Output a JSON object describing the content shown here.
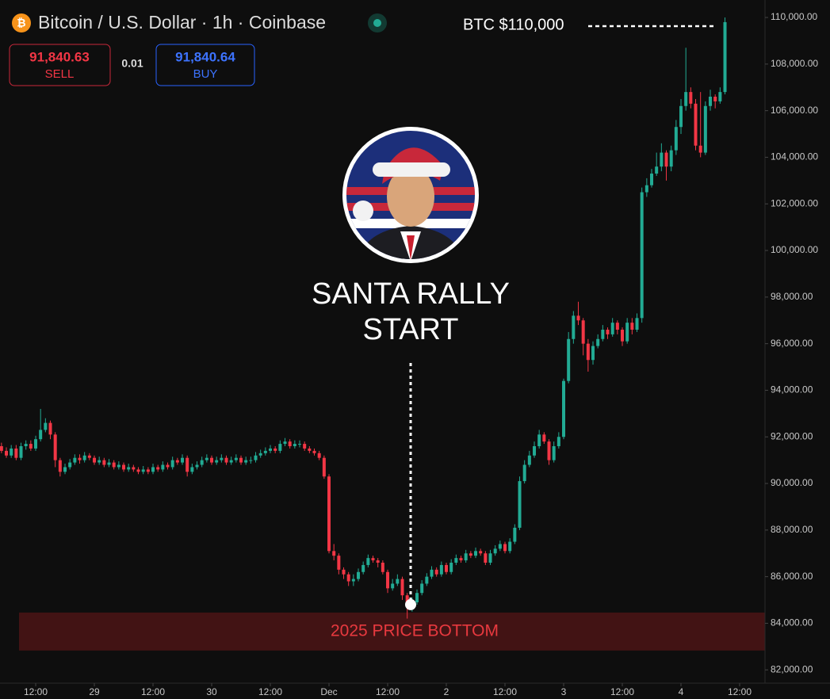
{
  "toolbar": {
    "title": "Bitcoin / U.S. Dollar · 1h · Coinbase",
    "sell_price": "91,840.63",
    "sell": "SELL",
    "spread": "0.01",
    "buy_price": "91,840.64",
    "buy": "BUY"
  },
  "chart_data": {
    "type": "candlestick",
    "up_color": "#22ab94",
    "down_color": "#f23645",
    "x": [
      5,
      6,
      7,
      8,
      9,
      10,
      11,
      12,
      13,
      14,
      15,
      16,
      17,
      18,
      19,
      20,
      21,
      22,
      23,
      24,
      25,
      26,
      27,
      28,
      29,
      30,
      31,
      32,
      33,
      34,
      35,
      36,
      37,
      38,
      39,
      40,
      41,
      42,
      43,
      44,
      45,
      46,
      47,
      48,
      49,
      50,
      51,
      52,
      53,
      54,
      55,
      56,
      57,
      58,
      59,
      60,
      61,
      62,
      63,
      64,
      65,
      66,
      67,
      68,
      69,
      70,
      71,
      72,
      73,
      74,
      75,
      76,
      77,
      78,
      79,
      80,
      81,
      82,
      83,
      84,
      85,
      86,
      87,
      88,
      89,
      90,
      91,
      92,
      93,
      94,
      95,
      96,
      97,
      98,
      99,
      100,
      101,
      102,
      103,
      104,
      105,
      106,
      107,
      108,
      109,
      110,
      111,
      112,
      113,
      114,
      115,
      116,
      117,
      118,
      119,
      120,
      121,
      122,
      123,
      124,
      125,
      126,
      127,
      128,
      129,
      130,
      131,
      132,
      133,
      134,
      135,
      136,
      137,
      138,
      139,
      140,
      141,
      142,
      143,
      144,
      145,
      146,
      147,
      148,
      149,
      150,
      151,
      152,
      153
    ],
    "open": [
      91600,
      91400,
      91200,
      91500,
      91100,
      91600,
      91700,
      91500,
      91900,
      92300,
      92600,
      92100,
      91000,
      90500,
      90700,
      90900,
      91100,
      91000,
      91200,
      91100,
      90900,
      91000,
      90800,
      90900,
      90700,
      90800,
      90600,
      90700,
      90600,
      90500,
      90600,
      90500,
      90700,
      90600,
      90800,
      90700,
      91000,
      90900,
      91100,
      90500,
      90700,
      90800,
      91000,
      91100,
      90900,
      91000,
      91100,
      90900,
      91000,
      91100,
      90900,
      91000,
      91000,
      91200,
      91300,
      91400,
      91500,
      91400,
      91700,
      91800,
      91600,
      91700,
      91700,
      91500,
      91400,
      91300,
      91100,
      90300,
      87100,
      86900,
      86300,
      86100,
      85800,
      85900,
      86200,
      86500,
      86800,
      86700,
      86600,
      86200,
      85500,
      85700,
      85900,
      85200,
      84800,
      84900,
      85300,
      85700,
      86000,
      86300,
      86100,
      86500,
      86200,
      86600,
      86800,
      86700,
      87000,
      86900,
      87100,
      87000,
      86600,
      87000,
      87200,
      87400,
      87100,
      87500,
      88100,
      90100,
      90800,
      91200,
      91600,
      92100,
      91800,
      91000,
      91600,
      92000,
      94400,
      96200,
      97200,
      97000,
      96000,
      95300,
      95900,
      96200,
      96600,
      96400,
      96900,
      96600,
      96100,
      96900,
      96600,
      97100,
      102500,
      102800,
      103300,
      103600,
      104200,
      103600,
      104300,
      105300,
      106200,
      106800,
      106300,
      104500,
      104200,
      106200,
      106600,
      106400,
      106800
    ],
    "high": [
      91750,
      91550,
      91650,
      91650,
      91750,
      91850,
      91850,
      92050,
      93200,
      92800,
      92700,
      92200,
      91100,
      90850,
      91050,
      91250,
      91250,
      91350,
      91300,
      91200,
      91150,
      91100,
      91050,
      91000,
      90950,
      90900,
      90850,
      90800,
      90700,
      90750,
      90700,
      90850,
      90800,
      90950,
      90900,
      91150,
      91100,
      91250,
      91200,
      90850,
      90950,
      91150,
      91250,
      91200,
      91150,
      91250,
      91200,
      91150,
      91250,
      91200,
      91150,
      91150,
      91350,
      91450,
      91550,
      91650,
      91600,
      91850,
      91950,
      91900,
      91850,
      91850,
      91800,
      91600,
      91500,
      91400,
      91200,
      90400,
      87400,
      87000,
      86400,
      86200,
      86100,
      86350,
      86650,
      86950,
      86900,
      86800,
      86700,
      86300,
      85900,
      86100,
      86000,
      85300,
      85100,
      85450,
      85850,
      86150,
      86450,
      86400,
      86650,
      86600,
      86750,
      86950,
      86900,
      87150,
      87100,
      87250,
      87200,
      87100,
      87150,
      87350,
      87550,
      87500,
      87650,
      88250,
      90300,
      91000,
      91400,
      91800,
      92300,
      92200,
      91900,
      91800,
      92200,
      94500,
      96500,
      97400,
      97800,
      97100,
      96200,
      96100,
      96400,
      96800,
      96700,
      97100,
      97000,
      96700,
      97100,
      97100,
      97300,
      102700,
      103100,
      103500,
      104200,
      104600,
      104300,
      104500,
      105600,
      106500,
      108700,
      107000,
      106500,
      106800,
      106400,
      106900,
      106700,
      107000,
      110000
    ],
    "low": [
      91300,
      91100,
      91100,
      91000,
      91000,
      91450,
      91400,
      91400,
      91800,
      92200,
      91900,
      90700,
      90300,
      90400,
      90600,
      90800,
      90850,
      90900,
      91000,
      90800,
      90800,
      90700,
      90700,
      90600,
      90600,
      90500,
      90500,
      90500,
      90400,
      90400,
      90400,
      90400,
      90500,
      90500,
      90600,
      90600,
      90800,
      90800,
      90300,
      90400,
      90600,
      90700,
      90900,
      90800,
      90800,
      90900,
      90800,
      90800,
      90900,
      90800,
      90800,
      90850,
      90900,
      91100,
      91200,
      91300,
      91300,
      91300,
      91600,
      91500,
      91500,
      91550,
      91400,
      91300,
      91200,
      91000,
      90200,
      87000,
      86700,
      86100,
      85900,
      85600,
      85600,
      85800,
      86100,
      86400,
      86600,
      86400,
      86100,
      85300,
      85400,
      85600,
      85000,
      84200,
      84500,
      84800,
      85200,
      85600,
      85900,
      86000,
      86000,
      86100,
      86100,
      86500,
      86600,
      86600,
      86800,
      86800,
      86900,
      86500,
      86500,
      86900,
      87100,
      87000,
      87000,
      87400,
      88000,
      90000,
      90700,
      91100,
      91500,
      91700,
      90800,
      90900,
      91500,
      91900,
      94300,
      96000,
      96800,
      95500,
      94800,
      95100,
      95800,
      96100,
      96200,
      96300,
      96400,
      95900,
      96000,
      96400,
      96500,
      96900,
      102300,
      102700,
      103200,
      103400,
      103000,
      103400,
      104100,
      105000,
      106000,
      106100,
      104300,
      104000,
      104100,
      106000,
      106100,
      106300,
      106700
    ],
    "close": [
      91400,
      91200,
      91500,
      91100,
      91600,
      91700,
      91500,
      91900,
      92300,
      92600,
      92100,
      91000,
      90500,
      90700,
      90900,
      91100,
      91000,
      91200,
      91100,
      90900,
      91000,
      90800,
      90900,
      90700,
      90800,
      90600,
      90700,
      90600,
      90500,
      90600,
      90500,
      90700,
      90600,
      90800,
      90700,
      91000,
      90900,
      91100,
      90500,
      90700,
      90800,
      91000,
      91100,
      90900,
      91000,
      91100,
      90900,
      91000,
      91100,
      90900,
      91000,
      91000,
      91200,
      91300,
      91400,
      91500,
      91400,
      91700,
      91800,
      91600,
      91700,
      91700,
      91500,
      91400,
      91300,
      91100,
      90300,
      87100,
      86900,
      86300,
      86100,
      85800,
      85900,
      86200,
      86500,
      86800,
      86700,
      86600,
      86200,
      85500,
      85700,
      85900,
      85200,
      84800,
      84900,
      85300,
      85700,
      86000,
      86300,
      86100,
      86500,
      86200,
      86600,
      86800,
      86700,
      87000,
      86900,
      87100,
      87000,
      86600,
      87000,
      87200,
      87400,
      87100,
      87500,
      88100,
      90100,
      90800,
      91200,
      91600,
      92100,
      91800,
      91000,
      91600,
      92000,
      94400,
      96200,
      97200,
      97000,
      96000,
      95300,
      95900,
      96200,
      96600,
      96400,
      96900,
      96600,
      96100,
      96900,
      96600,
      97100,
      102500,
      102800,
      103300,
      103600,
      104200,
      103600,
      104300,
      105300,
      106200,
      106800,
      106300,
      104500,
      104200,
      106200,
      106600,
      106400,
      106800,
      109800
    ],
    "xlim": [
      4.7,
      160.7
    ],
    "xticks": [
      {
        "value": 12,
        "label": "12:00"
      },
      {
        "value": 24,
        "label": "29"
      },
      {
        "value": 36,
        "label": "12:00"
      },
      {
        "value": 48,
        "label": "30"
      },
      {
        "value": 60,
        "label": "12:00"
      },
      {
        "value": 72,
        "label": "Dec"
      },
      {
        "value": 84,
        "label": "12:00"
      },
      {
        "value": 96,
        "label": "2"
      },
      {
        "value": 108,
        "label": "12:00"
      },
      {
        "value": 120,
        "label": "3"
      },
      {
        "value": 132,
        "label": "12:00"
      },
      {
        "value": 144,
        "label": "4"
      },
      {
        "value": 156,
        "label": "12:00"
      }
    ],
    "ylim": [
      81430,
      110750
    ],
    "yticks": [
      {
        "value": 82000,
        "label": "82,000.00"
      },
      {
        "value": 84000,
        "label": "84,000.00"
      },
      {
        "value": 86000,
        "label": "86,000.00"
      },
      {
        "value": 88000,
        "label": "88,000.00"
      },
      {
        "value": 90000,
        "label": "90,000.00"
      },
      {
        "value": 92000,
        "label": "92,000.00"
      },
      {
        "value": 94000,
        "label": "94,000.00"
      },
      {
        "value": 96000,
        "label": "96,000.00"
      },
      {
        "value": 98000,
        "label": "98,000.00"
      },
      {
        "value": 100000,
        "label": "100,000.00"
      },
      {
        "value": 102000,
        "label": "102,000.00"
      },
      {
        "value": 104000,
        "label": "104,000.00"
      },
      {
        "value": 106000,
        "label": "106,000.00"
      },
      {
        "value": 108000,
        "label": "108,000.00"
      },
      {
        "value": 110000,
        "label": "110,000.00"
      }
    ],
    "grid": false,
    "price_label": "BTC $110,000",
    "callout": [
      "SANTA RALLY",
      "START"
    ],
    "marker": {
      "x": 88.7,
      "y": 84800
    },
    "zone": {
      "label": "2025 PRICE BOTTOM",
      "from": 82830,
      "to": 84460
    }
  }
}
